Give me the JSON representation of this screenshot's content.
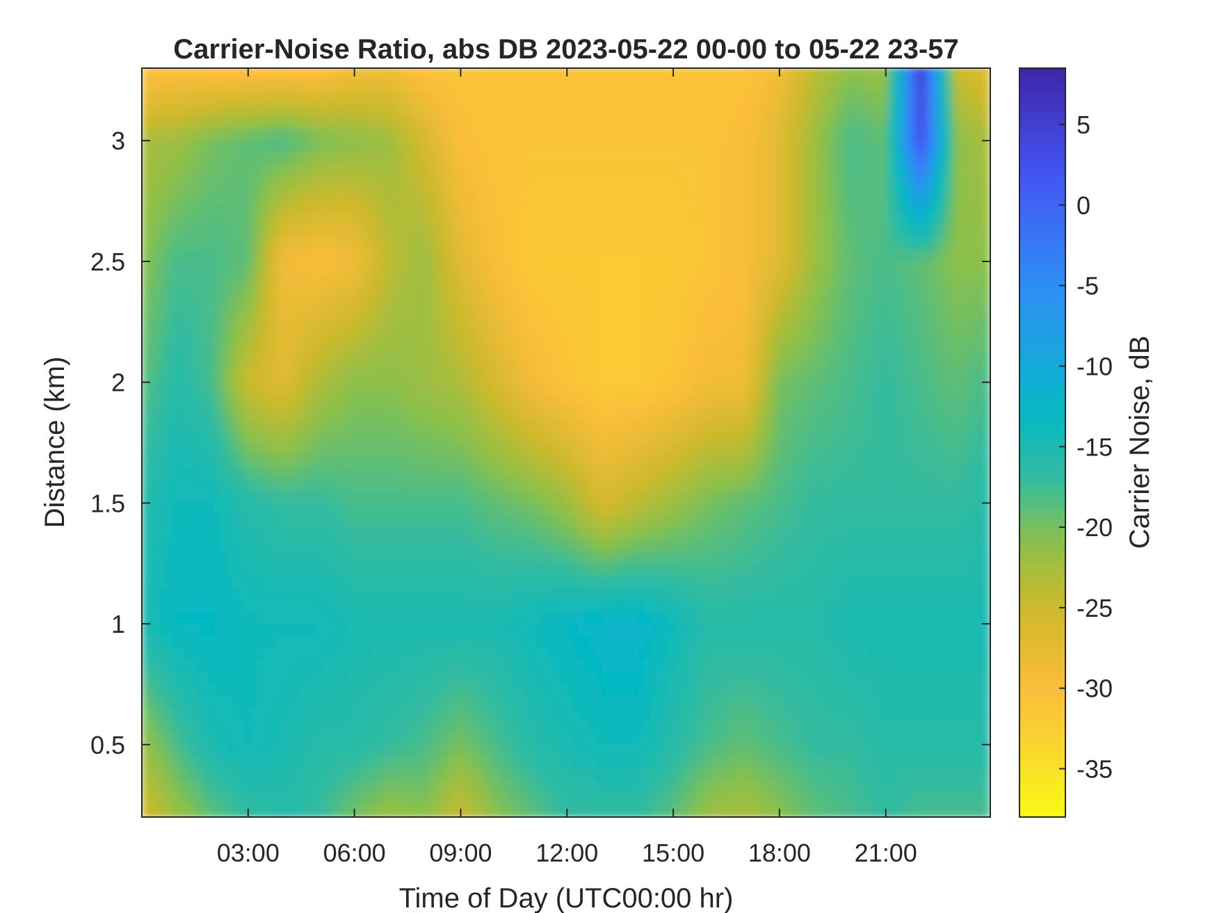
{
  "chart_data": {
    "type": "heatmap",
    "title": "Carrier-Noise Ratio, abs DB 2023-05-22 00-00 to 05-22 23-57",
    "xlabel": "Time of Day (UTC00:00 hr)",
    "ylabel": "Distance (km)",
    "colorbar_label": "Carrier Noise, dB",
    "xlim_hours": [
      0,
      23.95
    ],
    "ylim_km": [
      0.2,
      3.3
    ],
    "clim_db": [
      -38,
      8.5
    ],
    "colormap": "parula-reversed",
    "colormap_stops": [
      {
        "value": 8.5,
        "color": "#3e26a8"
      },
      {
        "value": 2,
        "color": "#4354f2"
      },
      {
        "value": -5,
        "color": "#2f8ef5"
      },
      {
        "value": -10,
        "color": "#14a9d9"
      },
      {
        "value": -13,
        "color": "#05b9c2"
      },
      {
        "value": -17,
        "color": "#32bba0"
      },
      {
        "value": -21,
        "color": "#8cc04a"
      },
      {
        "value": -25,
        "color": "#cdb92b"
      },
      {
        "value": -30,
        "color": "#fbbd3b"
      },
      {
        "value": -34,
        "color": "#f9d82c"
      },
      {
        "value": -38,
        "color": "#f9fb14"
      }
    ],
    "x_ticks": [
      {
        "value": 3,
        "label": "03:00"
      },
      {
        "value": 6,
        "label": "06:00"
      },
      {
        "value": 9,
        "label": "09:00"
      },
      {
        "value": 12,
        "label": "12:00"
      },
      {
        "value": 15,
        "label": "15:00"
      },
      {
        "value": 18,
        "label": "18:00"
      },
      {
        "value": 21,
        "label": "21:00"
      }
    ],
    "y_ticks": [
      {
        "value": 0.5,
        "label": "0.5"
      },
      {
        "value": 1,
        "label": "1"
      },
      {
        "value": 1.5,
        "label": "1.5"
      },
      {
        "value": 2,
        "label": "2"
      },
      {
        "value": 2.5,
        "label": "2.5"
      },
      {
        "value": 3,
        "label": "3"
      }
    ],
    "colorbar_ticks": [
      {
        "value": 5,
        "label": "5"
      },
      {
        "value": 0,
        "label": "0"
      },
      {
        "value": -5,
        "label": "-5"
      },
      {
        "value": -10,
        "label": "-10"
      },
      {
        "value": -15,
        "label": "-15"
      },
      {
        "value": -20,
        "label": "-20"
      },
      {
        "value": -25,
        "label": "-25"
      },
      {
        "value": -30,
        "label": "-30"
      },
      {
        "value": -35,
        "label": "-35"
      }
    ],
    "time_hours": [
      0,
      1,
      2,
      3,
      4,
      5,
      6,
      7,
      8,
      9,
      10,
      11,
      12,
      13,
      14,
      15,
      16,
      17,
      18,
      19,
      20,
      21,
      22,
      23,
      23.95
    ],
    "distance_km": [
      0.2,
      0.5,
      1.0,
      1.5,
      2.0,
      2.5,
      3.0,
      3.3
    ],
    "values_db": [
      [
        -26,
        -22,
        -19,
        -17,
        -16,
        -17,
        -20,
        -22,
        -21,
        -25,
        -21,
        -19,
        -17,
        -17,
        -17,
        -19,
        -22,
        -23,
        -21,
        -19,
        -18,
        -17,
        -18,
        -18,
        -18
      ],
      [
        -22,
        -18,
        -15,
        -14,
        -15,
        -16,
        -16,
        -17,
        -18,
        -20,
        -18,
        -16,
        -15,
        -14,
        -14,
        -16,
        -18,
        -19,
        -18,
        -17,
        -17,
        -16,
        -16,
        -16,
        -16
      ],
      [
        -15,
        -13,
        -13,
        -14,
        -14,
        -14,
        -15,
        -15,
        -15,
        -15,
        -15,
        -14,
        -13,
        -12,
        -12,
        -14,
        -16,
        -16,
        -16,
        -16,
        -15,
        -15,
        -15,
        -15,
        -15
      ],
      [
        -16,
        -14,
        -14,
        -16,
        -17,
        -17,
        -18,
        -18,
        -18,
        -18,
        -19,
        -20,
        -22,
        -26,
        -24,
        -22,
        -20,
        -19,
        -18,
        -17,
        -17,
        -17,
        -17,
        -17,
        -16
      ],
      [
        -19,
        -16,
        -18,
        -25,
        -27,
        -23,
        -21,
        -21,
        -22,
        -23,
        -26,
        -29,
        -31,
        -32,
        -32,
        -31,
        -29,
        -29,
        -20,
        -19,
        -18,
        -17,
        -18,
        -19,
        -18
      ],
      [
        -21,
        -18,
        -18,
        -19,
        -29,
        -30,
        -29,
        -24,
        -22,
        -27,
        -30,
        -32,
        -32,
        -32,
        -32,
        -32,
        -31,
        -30,
        -27,
        -22,
        -19,
        -18,
        -19,
        -21,
        -21
      ],
      [
        -23,
        -22,
        -20,
        -19,
        -18,
        -20,
        -21,
        -22,
        -26,
        -30,
        -31,
        -31,
        -31,
        -31,
        -31,
        -31,
        -31,
        -30,
        -27,
        -22,
        -18,
        -19,
        3,
        -21,
        -23
      ],
      [
        -31,
        -31,
        -31,
        -31,
        -31,
        -31,
        -29,
        -29,
        -31,
        -31,
        -31,
        -31,
        -31,
        -31,
        -31,
        -31,
        -31,
        -31,
        -29,
        -24,
        -21,
        -22,
        5,
        -25,
        -27
      ]
    ]
  }
}
